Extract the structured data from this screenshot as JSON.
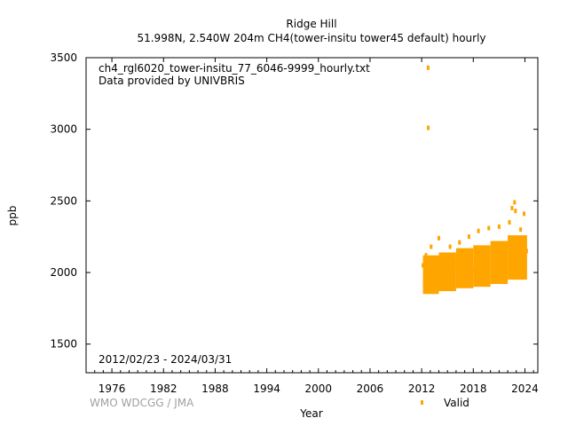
{
  "chart_data": {
    "type": "scatter",
    "title": "Ridge Hill",
    "subtitle": "51.998N, 2.540W 204m    CH4(tower-insitu tower45 default) hourly",
    "xlabel": "Year",
    "ylabel": "ppb",
    "xlim": [
      1973.0,
      2025.5
    ],
    "ylim": [
      1300,
      3500
    ],
    "x_ticks": [
      1976,
      1982,
      1988,
      1994,
      2000,
      2006,
      2012,
      2018,
      2024
    ],
    "y_ticks": [
      1500,
      2000,
      2500,
      3000,
      3500
    ],
    "grid": false,
    "legend": {
      "placement": "bottom-right",
      "entries": [
        "Valid"
      ]
    },
    "annotations": {
      "filename": "ch4_rgl6020_tower-insitu_77_6046-9999_hourly.txt",
      "provider": "Data provided by UNIVBRIS",
      "date_range": "2012/02/23 - 2024/03/31",
      "watermark": "WMO WDCGG / JMA"
    },
    "series": [
      {
        "name": "Valid",
        "color": "#ffa500",
        "x": [
          2012.15,
          2012.3,
          2012.5,
          2012.7,
          2012.75,
          2012.76,
          2012.9,
          2013.1,
          2013.4,
          2013.7,
          2014.0,
          2014.3,
          2014.6,
          2015.0,
          2015.3,
          2015.6,
          2016.0,
          2016.4,
          2016.8,
          2017.1,
          2017.5,
          2017.9,
          2018.2,
          2018.6,
          2019.0,
          2019.4,
          2019.8,
          2020.2,
          2020.6,
          2021.0,
          2021.4,
          2021.8,
          2022.2,
          2022.5,
          2022.8,
          2022.9,
          2023.1,
          2023.5,
          2023.9,
          2024.2
        ],
        "y": [
          2050,
          1930,
          2120,
          2020,
          3430,
          3010,
          1960,
          2180,
          1950,
          2060,
          2240,
          1960,
          2080,
          2010,
          2180,
          1990,
          2060,
          2210,
          2000,
          2100,
          2250,
          2010,
          2120,
          2290,
          2030,
          2130,
          2310,
          2040,
          2160,
          2320,
          2070,
          2200,
          2350,
          2450,
          2490,
          2430,
          2110,
          2300,
          2410,
          2150
        ]
      }
    ],
    "bands": [
      {
        "x0": 2012.15,
        "x1": 2014.0,
        "low": 1850,
        "high": 2120
      },
      {
        "x0": 2014.0,
        "x1": 2016.0,
        "low": 1870,
        "high": 2140
      },
      {
        "x0": 2016.0,
        "x1": 2018.0,
        "low": 1890,
        "high": 2170
      },
      {
        "x0": 2018.0,
        "x1": 2020.0,
        "low": 1900,
        "high": 2190
      },
      {
        "x0": 2020.0,
        "x1": 2022.0,
        "low": 1920,
        "high": 2220
      },
      {
        "x0": 2022.0,
        "x1": 2024.25,
        "low": 1950,
        "high": 2260
      }
    ]
  }
}
